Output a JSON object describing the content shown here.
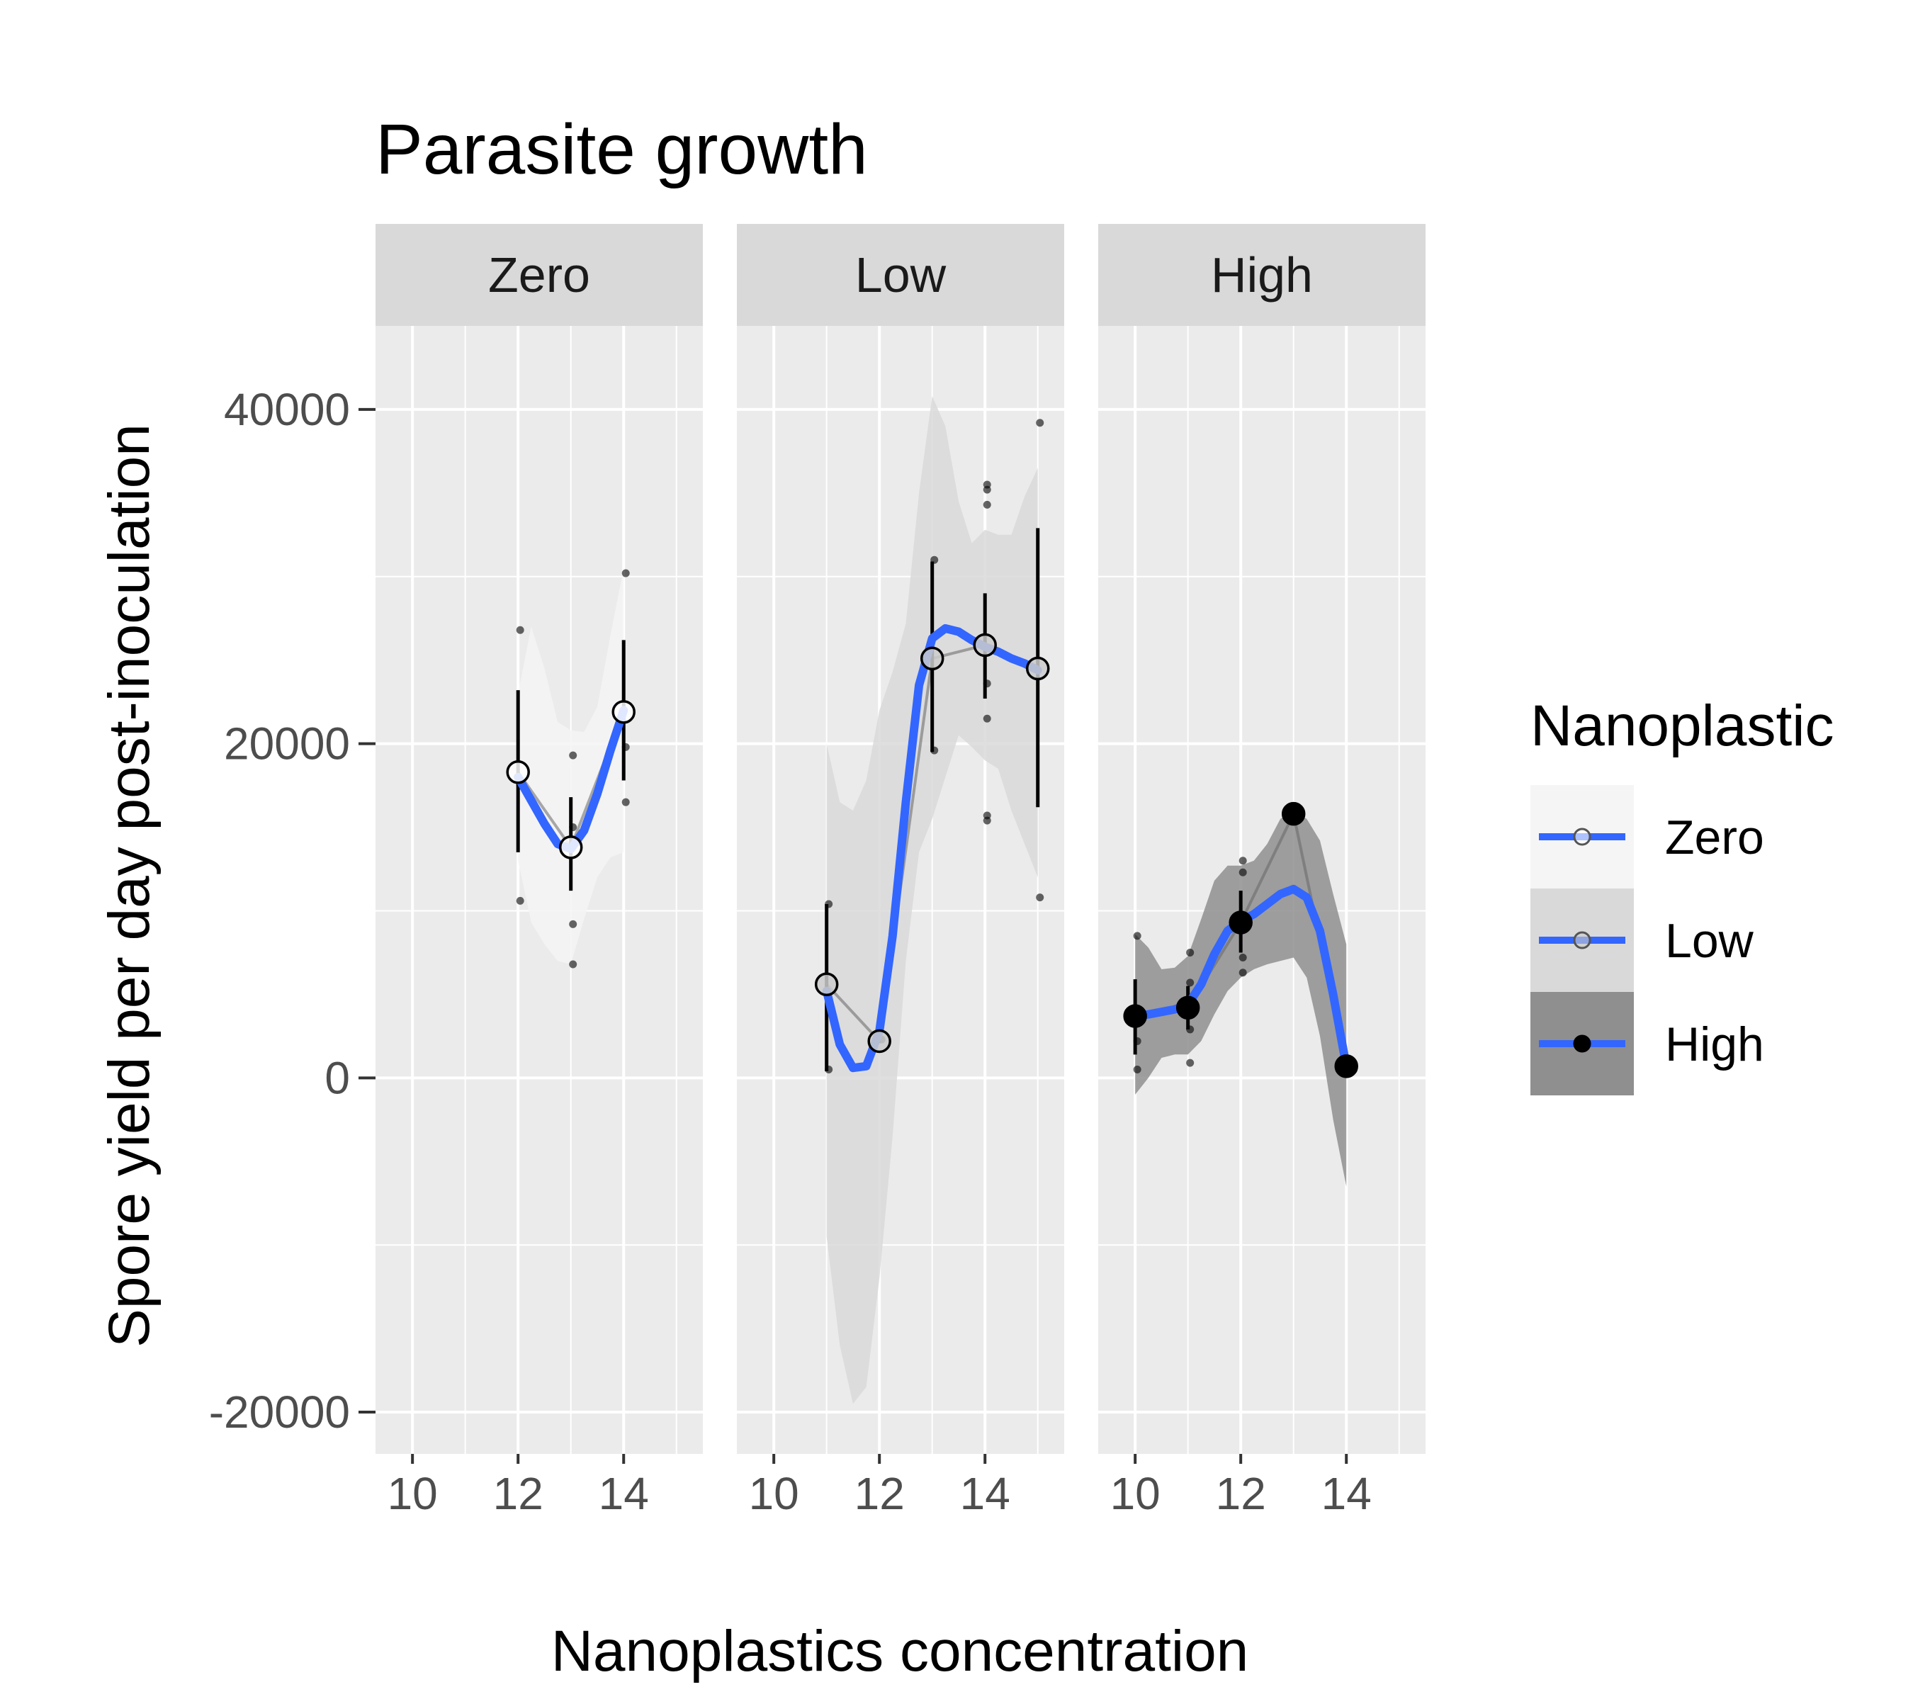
{
  "chart_data": {
    "type": "line",
    "title": "Parasite growth",
    "xlabel": "Nanoplastics concentration",
    "ylabel": "Spore yield per day post-inoculation",
    "xlim": [
      9.3,
      15.5
    ],
    "ylim": [
      -22500,
      45000
    ],
    "x_ticks": [
      10,
      12,
      14
    ],
    "y_ticks": [
      -20000,
      0,
      20000,
      40000
    ],
    "grid": true,
    "legend": {
      "title": "Nanoplastic",
      "position": "right",
      "entries": [
        "Zero",
        "Low",
        "High"
      ]
    },
    "smooth_color": "#3366ff",
    "panels": [
      {
        "name": "Zero",
        "ribbon_fill": "#f5f5f5",
        "point_fill": "#ffffff",
        "means": [
          {
            "x": 12,
            "y": 18300,
            "lo": 13500,
            "hi": 23200
          },
          {
            "x": 13,
            "y": 13800,
            "lo": 11200,
            "hi": 16800
          },
          {
            "x": 14,
            "y": 21900,
            "lo": 17800,
            "hi": 26200
          }
        ],
        "raw": [
          {
            "x": 12,
            "y": 26800
          },
          {
            "x": 12,
            "y": 17500
          },
          {
            "x": 12,
            "y": 10600
          },
          {
            "x": 13,
            "y": 19300
          },
          {
            "x": 13,
            "y": 15000
          },
          {
            "x": 13,
            "y": 9200
          },
          {
            "x": 13,
            "y": 6800
          },
          {
            "x": 14,
            "y": 30200
          },
          {
            "x": 14,
            "y": 19800
          },
          {
            "x": 14,
            "y": 16500
          }
        ],
        "smooth": [
          {
            "x": 12,
            "y": 18000
          },
          {
            "x": 12.25,
            "y": 16600
          },
          {
            "x": 12.5,
            "y": 15200
          },
          {
            "x": 12.75,
            "y": 14000
          },
          {
            "x": 13,
            "y": 13700
          },
          {
            "x": 13.25,
            "y": 14800
          },
          {
            "x": 13.5,
            "y": 17000
          },
          {
            "x": 13.75,
            "y": 19600
          },
          {
            "x": 14,
            "y": 22000
          }
        ],
        "ribbon_upper": [
          {
            "x": 12,
            "y": 23000
          },
          {
            "x": 12.25,
            "y": 27000
          },
          {
            "x": 12.5,
            "y": 24500
          },
          {
            "x": 12.75,
            "y": 21300
          },
          {
            "x": 13,
            "y": 20800
          },
          {
            "x": 13.25,
            "y": 20700
          },
          {
            "x": 13.5,
            "y": 22200
          },
          {
            "x": 13.75,
            "y": 26500
          },
          {
            "x": 14,
            "y": 30500
          }
        ],
        "ribbon_lower": [
          {
            "x": 12,
            "y": 13000
          },
          {
            "x": 12.25,
            "y": 9300
          },
          {
            "x": 12.5,
            "y": 8000
          },
          {
            "x": 12.75,
            "y": 7000
          },
          {
            "x": 13,
            "y": 6800
          },
          {
            "x": 13.25,
            "y": 9500
          },
          {
            "x": 13.5,
            "y": 12000
          },
          {
            "x": 13.75,
            "y": 13200
          },
          {
            "x": 14,
            "y": 13500
          }
        ]
      },
      {
        "name": "Low",
        "ribbon_fill": "#d9d9d9",
        "point_fill": "#cccccc",
        "means": [
          {
            "x": 11,
            "y": 5600,
            "lo": 400,
            "hi": 10400
          },
          {
            "x": 12,
            "y": 2200,
            "lo": 2200,
            "hi": 2200
          },
          {
            "x": 13,
            "y": 25100,
            "lo": 19500,
            "hi": 30900
          },
          {
            "x": 14,
            "y": 25900,
            "lo": 22700,
            "hi": 29000
          },
          {
            "x": 15,
            "y": 24500,
            "lo": 16200,
            "hi": 32900
          }
        ],
        "raw": [
          {
            "x": 11,
            "y": 10400
          },
          {
            "x": 11,
            "y": 500
          },
          {
            "x": 12,
            "y": 2300
          },
          {
            "x": 13,
            "y": 31000
          },
          {
            "x": 13,
            "y": 19600
          },
          {
            "x": 14,
            "y": 35500
          },
          {
            "x": 14,
            "y": 35200
          },
          {
            "x": 14,
            "y": 34300
          },
          {
            "x": 14,
            "y": 23600
          },
          {
            "x": 14,
            "y": 21500
          },
          {
            "x": 14,
            "y": 15700
          },
          {
            "x": 14,
            "y": 15400
          },
          {
            "x": 15,
            "y": 39200
          },
          {
            "x": 15,
            "y": 10800
          }
        ],
        "smooth": [
          {
            "x": 11,
            "y": 5200
          },
          {
            "x": 11.25,
            "y": 2000
          },
          {
            "x": 11.5,
            "y": 600
          },
          {
            "x": 11.75,
            "y": 700
          },
          {
            "x": 12,
            "y": 2800
          },
          {
            "x": 12.25,
            "y": 8500
          },
          {
            "x": 12.5,
            "y": 16500
          },
          {
            "x": 12.75,
            "y": 23500
          },
          {
            "x": 13,
            "y": 26300
          },
          {
            "x": 13.25,
            "y": 26900
          },
          {
            "x": 13.5,
            "y": 26700
          },
          {
            "x": 13.75,
            "y": 26200
          },
          {
            "x": 14,
            "y": 25800
          },
          {
            "x": 14.25,
            "y": 25500
          },
          {
            "x": 14.5,
            "y": 25100
          },
          {
            "x": 14.75,
            "y": 24800
          },
          {
            "x": 15,
            "y": 24400
          }
        ],
        "ribbon_upper": [
          {
            "x": 11,
            "y": 20000
          },
          {
            "x": 11.25,
            "y": 16500
          },
          {
            "x": 11.5,
            "y": 16000
          },
          {
            "x": 11.75,
            "y": 17800
          },
          {
            "x": 12,
            "y": 22000
          },
          {
            "x": 12.25,
            "y": 24300
          },
          {
            "x": 12.5,
            "y": 27200
          },
          {
            "x": 12.75,
            "y": 35000
          },
          {
            "x": 13,
            "y": 40800
          },
          {
            "x": 13.25,
            "y": 39000
          },
          {
            "x": 13.5,
            "y": 34500
          },
          {
            "x": 13.75,
            "y": 32000
          },
          {
            "x": 14,
            "y": 32800
          },
          {
            "x": 14.25,
            "y": 32500
          },
          {
            "x": 14.5,
            "y": 32500
          },
          {
            "x": 14.75,
            "y": 34800
          },
          {
            "x": 15,
            "y": 36500
          }
        ],
        "ribbon_lower": [
          {
            "x": 11,
            "y": -9500
          },
          {
            "x": 11.25,
            "y": -16000
          },
          {
            "x": 11.5,
            "y": -19500
          },
          {
            "x": 11.75,
            "y": -18500
          },
          {
            "x": 12,
            "y": -12000
          },
          {
            "x": 12.25,
            "y": -3500
          },
          {
            "x": 12.5,
            "y": 7000
          },
          {
            "x": 12.75,
            "y": 13500
          },
          {
            "x": 13,
            "y": 15500
          },
          {
            "x": 13.25,
            "y": 18000
          },
          {
            "x": 13.5,
            "y": 20500
          },
          {
            "x": 13.75,
            "y": 19800
          },
          {
            "x": 14,
            "y": 19000
          },
          {
            "x": 14.25,
            "y": 18500
          },
          {
            "x": 14.5,
            "y": 16000
          },
          {
            "x": 14.75,
            "y": 14000
          },
          {
            "x": 15,
            "y": 12000
          }
        ]
      },
      {
        "name": "High",
        "ribbon_fill": "#8f8f8f",
        "point_fill": "#000000",
        "means": [
          {
            "x": 10,
            "y": 3700,
            "lo": 1400,
            "hi": 5900
          },
          {
            "x": 11,
            "y": 4200,
            "lo": 2900,
            "hi": 5500
          },
          {
            "x": 12,
            "y": 9300,
            "lo": 7500,
            "hi": 11200
          },
          {
            "x": 13,
            "y": 15800,
            "lo": 15800,
            "hi": 15800
          },
          {
            "x": 14,
            "y": 700,
            "lo": 700,
            "hi": 700
          }
        ],
        "raw": [
          {
            "x": 10,
            "y": 8500
          },
          {
            "x": 10,
            "y": 2200
          },
          {
            "x": 10,
            "y": 500
          },
          {
            "x": 11,
            "y": 7500
          },
          {
            "x": 11,
            "y": 5700
          },
          {
            "x": 11,
            "y": 2900
          },
          {
            "x": 11,
            "y": 900
          },
          {
            "x": 12,
            "y": 13000
          },
          {
            "x": 12,
            "y": 12300
          },
          {
            "x": 12,
            "y": 7200
          },
          {
            "x": 12,
            "y": 6300
          },
          {
            "x": 13,
            "y": 15800
          },
          {
            "x": 14,
            "y": 800
          }
        ],
        "smooth": [
          {
            "x": 10,
            "y": 3700
          },
          {
            "x": 10.25,
            "y": 3800
          },
          {
            "x": 10.5,
            "y": 3950
          },
          {
            "x": 10.75,
            "y": 4100
          },
          {
            "x": 11,
            "y": 4400
          },
          {
            "x": 11.25,
            "y": 5600
          },
          {
            "x": 11.5,
            "y": 7400
          },
          {
            "x": 11.75,
            "y": 8800
          },
          {
            "x": 12,
            "y": 9400
          },
          {
            "x": 12.25,
            "y": 9800
          },
          {
            "x": 12.5,
            "y": 10400
          },
          {
            "x": 12.75,
            "y": 11000
          },
          {
            "x": 13,
            "y": 11300
          },
          {
            "x": 13.25,
            "y": 10800
          },
          {
            "x": 13.5,
            "y": 8800
          },
          {
            "x": 13.75,
            "y": 5000
          },
          {
            "x": 14,
            "y": 700
          }
        ],
        "ribbon_upper": [
          {
            "x": 10,
            "y": 8600
          },
          {
            "x": 10.25,
            "y": 7800
          },
          {
            "x": 10.5,
            "y": 6500
          },
          {
            "x": 10.75,
            "y": 6600
          },
          {
            "x": 11,
            "y": 7300
          },
          {
            "x": 11.25,
            "y": 9500
          },
          {
            "x": 11.5,
            "y": 11800
          },
          {
            "x": 11.75,
            "y": 12700
          },
          {
            "x": 12,
            "y": 12700
          },
          {
            "x": 12.25,
            "y": 13000
          },
          {
            "x": 12.5,
            "y": 14000
          },
          {
            "x": 12.75,
            "y": 15500
          },
          {
            "x": 13,
            "y": 16000
          },
          {
            "x": 13.25,
            "y": 15500
          },
          {
            "x": 13.5,
            "y": 14200
          },
          {
            "x": 13.75,
            "y": 11000
          },
          {
            "x": 14,
            "y": 8000
          }
        ],
        "ribbon_lower": [
          {
            "x": 10,
            "y": -1000
          },
          {
            "x": 10.25,
            "y": 0
          },
          {
            "x": 10.5,
            "y": 1200
          },
          {
            "x": 10.75,
            "y": 1400
          },
          {
            "x": 11,
            "y": 1400
          },
          {
            "x": 11.25,
            "y": 2200
          },
          {
            "x": 11.5,
            "y": 3800
          },
          {
            "x": 11.75,
            "y": 5200
          },
          {
            "x": 12,
            "y": 6000
          },
          {
            "x": 12.25,
            "y": 6500
          },
          {
            "x": 12.5,
            "y": 6800
          },
          {
            "x": 12.75,
            "y": 7000
          },
          {
            "x": 13,
            "y": 7200
          },
          {
            "x": 13.25,
            "y": 6000
          },
          {
            "x": 13.5,
            "y": 2500
          },
          {
            "x": 13.75,
            "y": -2500
          },
          {
            "x": 14,
            "y": -6500
          }
        ]
      }
    ]
  }
}
